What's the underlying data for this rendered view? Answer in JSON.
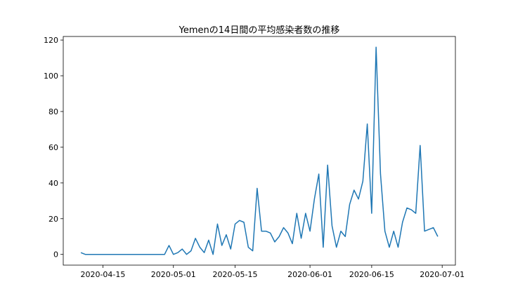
{
  "chart_data": {
    "type": "line",
    "title": "Yemenの14日間の平均感染者数の推移",
    "xlabel": "",
    "ylabel": "",
    "x_start": "2020-04-10",
    "x_end": "2020-06-30",
    "xlim": [
      "2020-04-06",
      "2020-07-04"
    ],
    "ylim": [
      -6,
      122
    ],
    "x_ticks": [
      "2020-04-15",
      "2020-05-01",
      "2020-05-15",
      "2020-06-01",
      "2020-06-15",
      "2020-07-01"
    ],
    "y_ticks": [
      0,
      20,
      40,
      60,
      80,
      100,
      120
    ],
    "grid": false,
    "series": [
      {
        "color": "#1f77b4",
        "values": [
          1,
          0,
          0,
          0,
          0,
          0,
          0,
          0,
          0,
          0,
          0,
          0,
          0,
          0,
          0,
          0,
          0,
          0,
          0,
          0,
          5,
          0,
          1,
          3,
          0,
          2,
          9,
          4,
          1,
          8,
          0,
          17,
          5,
          11,
          3,
          17,
          19,
          18,
          4,
          2,
          37,
          13,
          13,
          12,
          7,
          10,
          15,
          12,
          6,
          23,
          9,
          23,
          13,
          31,
          45,
          4,
          50,
          16,
          4,
          13,
          10,
          28,
          36,
          31,
          41,
          73,
          23,
          116,
          45,
          13,
          4,
          13,
          4,
          18,
          26,
          25,
          23,
          61,
          13,
          14,
          15,
          10
        ]
      }
    ]
  }
}
